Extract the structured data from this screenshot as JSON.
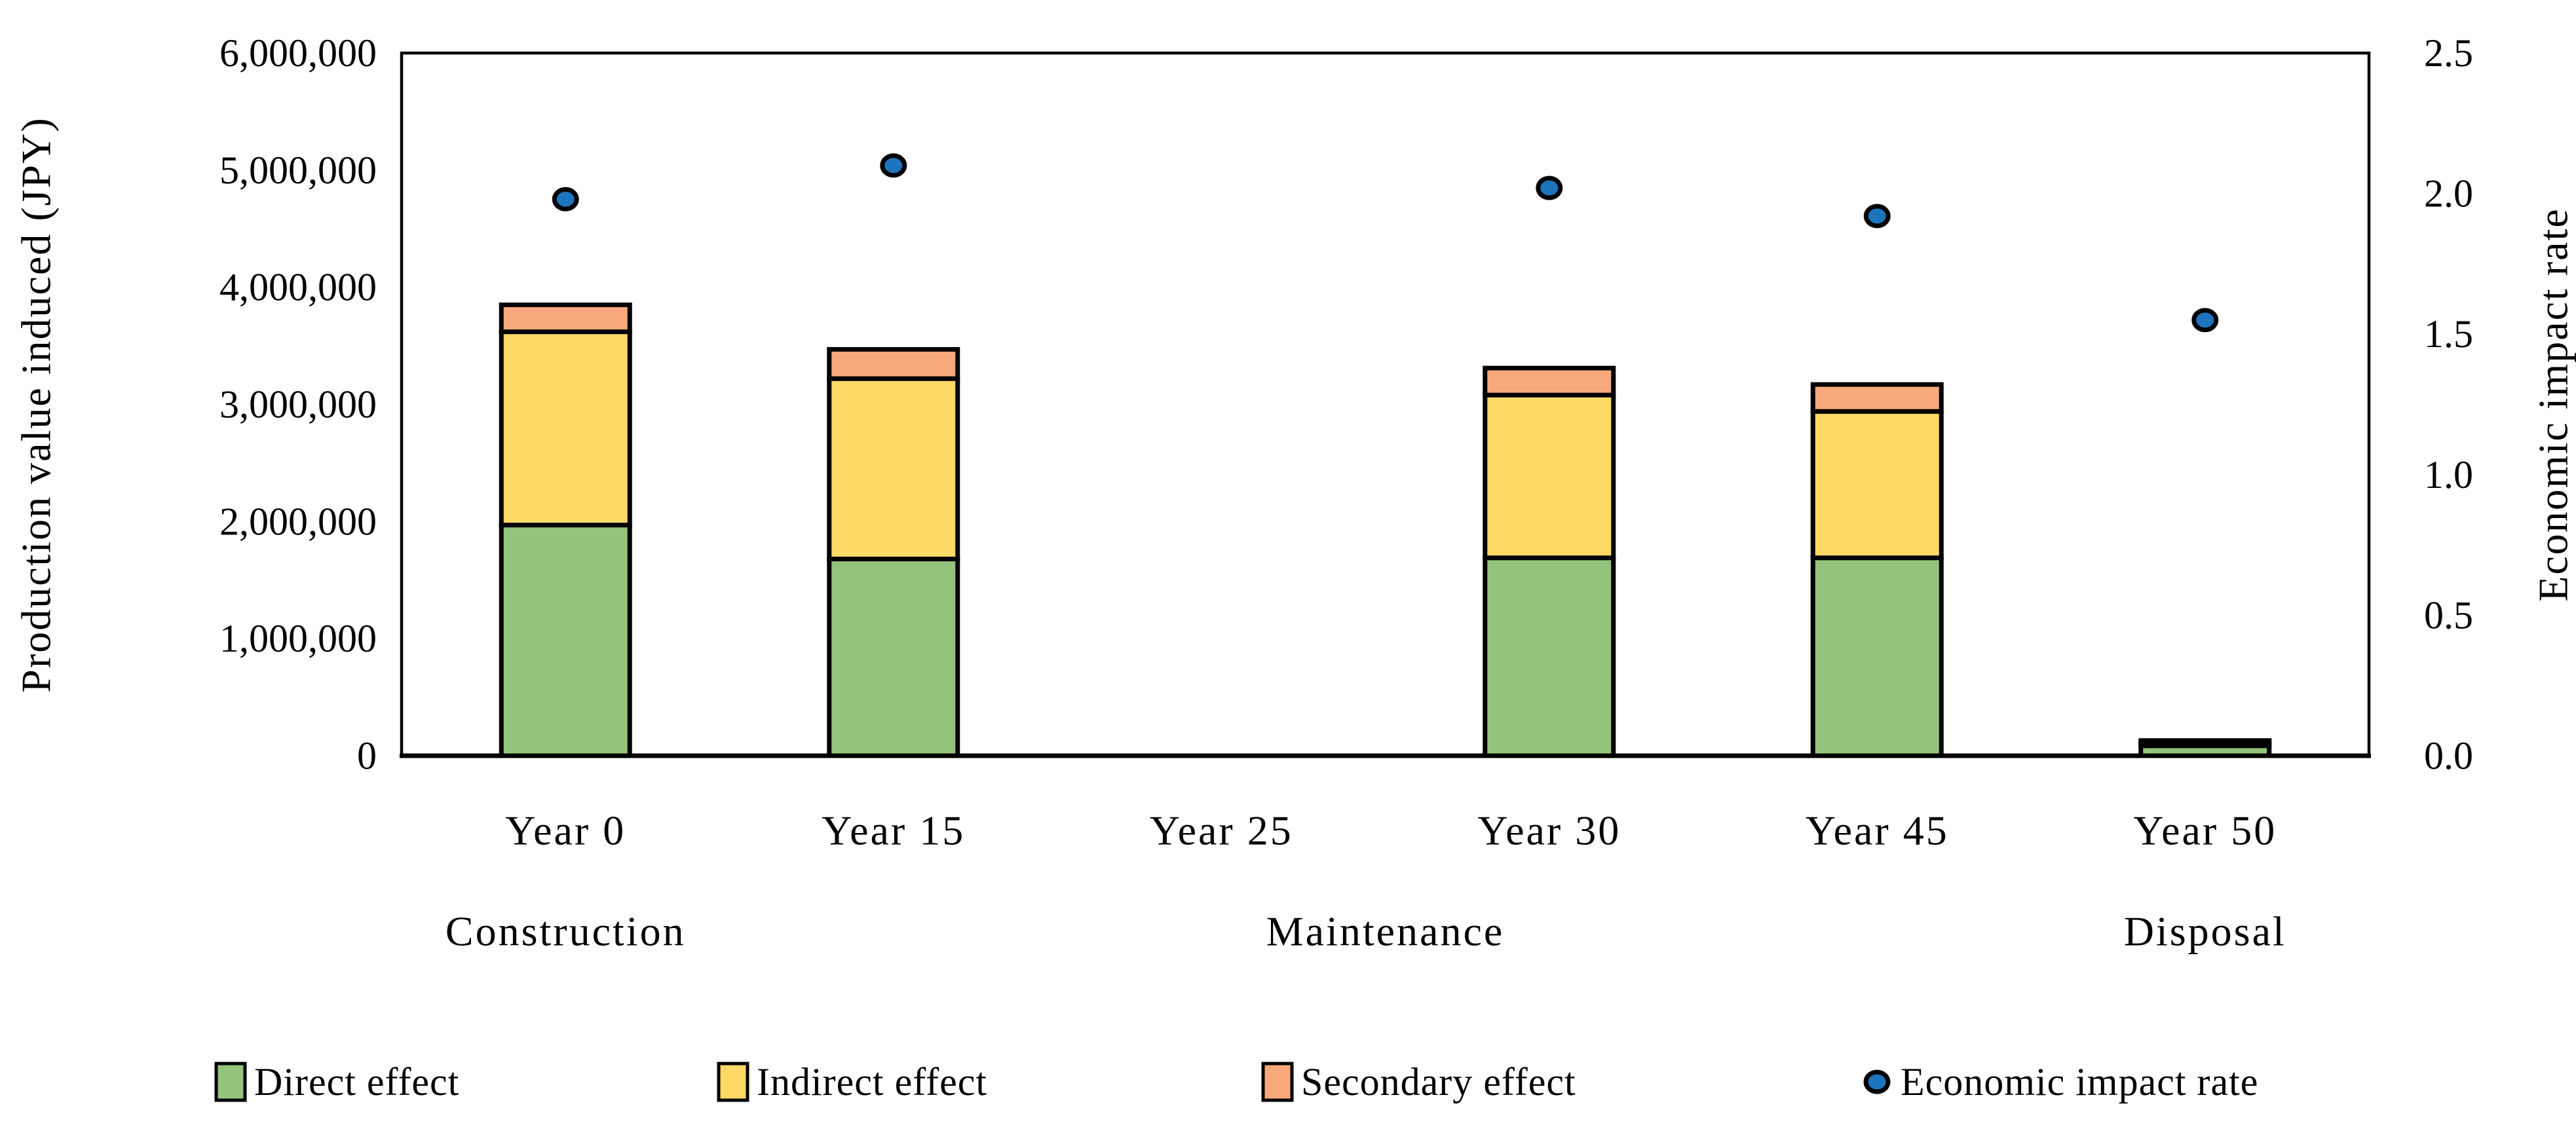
{
  "chart_data": {
    "type": "bar",
    "subtype": "stacked-bar-with-scatter-overlay",
    "title": "",
    "categories": [
      "Year 0",
      "Year 15",
      "Year 25",
      "Year 30",
      "Year 45",
      "Year 50"
    ],
    "stage_groups": [
      {
        "label": "Construction",
        "anchor_slot": 0
      },
      {
        "label": "Maintenance",
        "anchor_slot": 2.5
      },
      {
        "label": "Disposal",
        "anchor_slot": 5
      }
    ],
    "series": [
      {
        "name": "Direct effect",
        "type": "bar",
        "axis": "left",
        "color": "#93C47D",
        "values": [
          1970000,
          1680000,
          0,
          1690000,
          1690000,
          85000
        ]
      },
      {
        "name": "Indirect effect",
        "type": "bar",
        "axis": "left",
        "color": "#FFD966",
        "values": [
          1650000,
          1540000,
          0,
          1390000,
          1250000,
          25000
        ]
      },
      {
        "name": "Secondary effect",
        "type": "bar",
        "axis": "left",
        "color": "#F7A97C",
        "values": [
          230000,
          250000,
          0,
          230000,
          230000,
          20000
        ]
      },
      {
        "name": "Economic impact rate",
        "type": "scatter",
        "axis": "right",
        "color": "#1C75BC",
        "values": [
          1.98,
          2.1,
          null,
          2.02,
          1.92,
          1.55
        ]
      }
    ],
    "left_axis": {
      "label": "Production value induced (JPY)",
      "min": 0,
      "max": 6000000,
      "ticks": [
        "0",
        "1,000,000",
        "2,000,000",
        "3,000,000",
        "4,000,000",
        "5,000,000",
        "6,000,000"
      ]
    },
    "right_axis": {
      "label": "Economic impact rate",
      "min": 0,
      "max": 2.5,
      "ticks": [
        "0.0",
        "0.5",
        "1.0",
        "1.5",
        "2.0",
        "2.5"
      ]
    },
    "grid": false,
    "legend_position": "bottom",
    "background_color": "#FFFFFF",
    "outline_color": "#000000"
  }
}
